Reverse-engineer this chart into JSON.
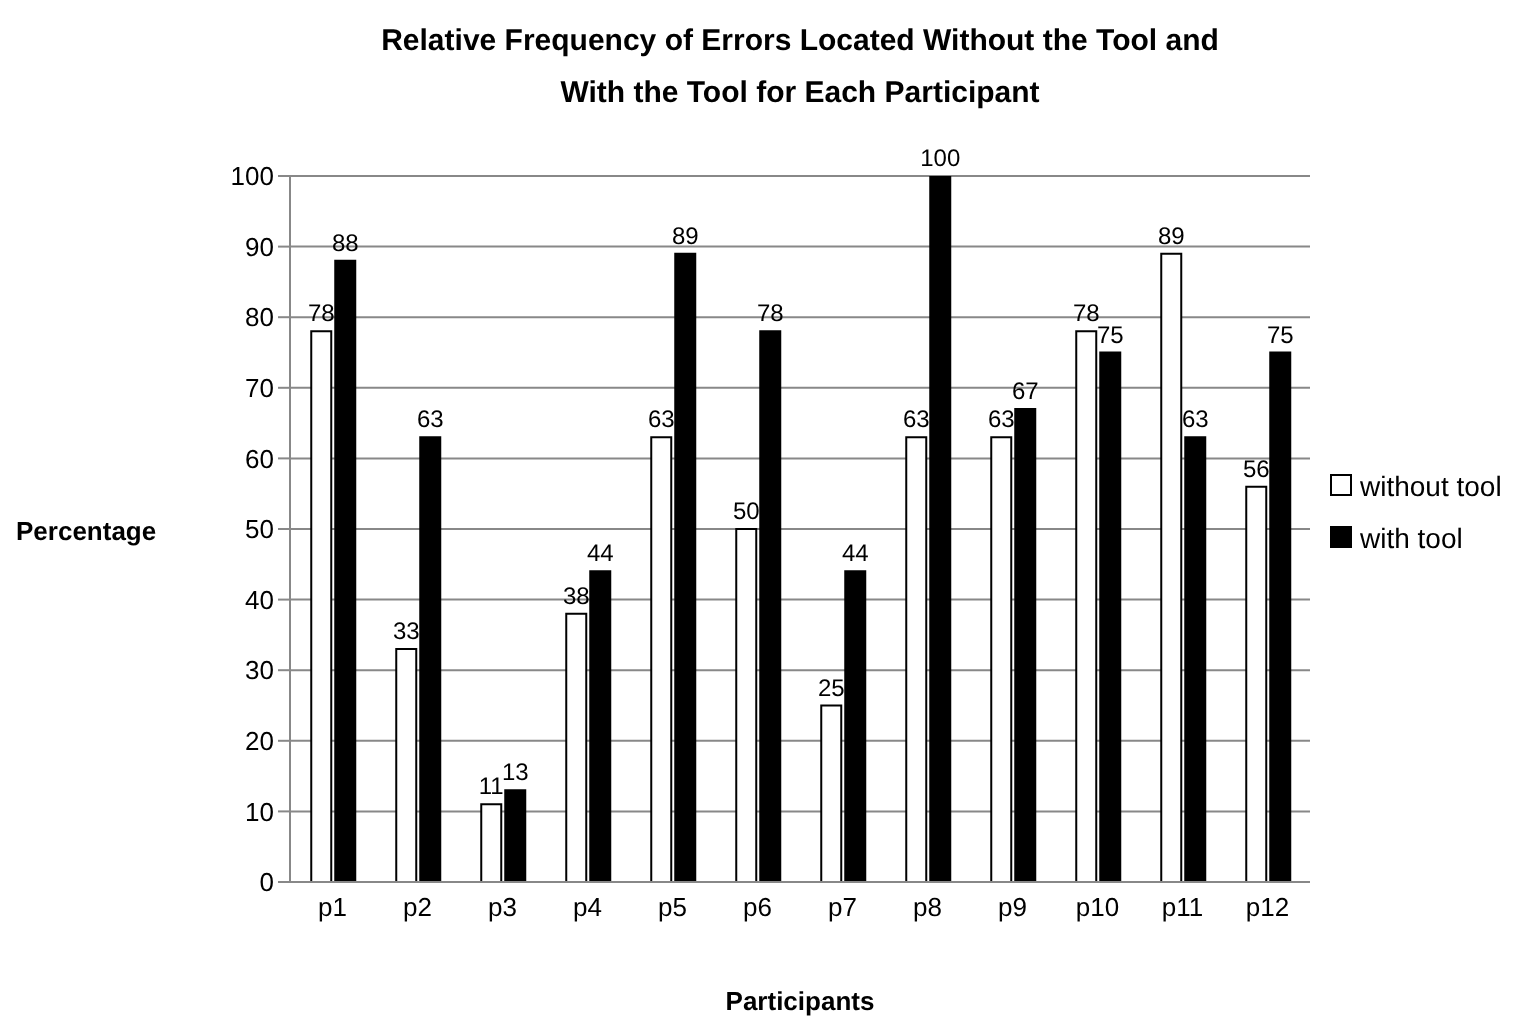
{
  "chart_data": {
    "type": "bar",
    "title": "Relative Frequency of Errors Located Without the Tool and With the Tool for Each Participant",
    "xlabel": "Participants",
    "ylabel": "Percentage",
    "categories": [
      "p1",
      "p2",
      "p3",
      "p4",
      "p5",
      "p6",
      "p7",
      "p8",
      "p9",
      "p10",
      "p11",
      "p12"
    ],
    "series": [
      {
        "name": "without tool",
        "color": "#ffffff",
        "values": [
          78,
          33,
          11,
          38,
          63,
          50,
          25,
          63,
          63,
          78,
          89,
          56
        ]
      },
      {
        "name": "with tool",
        "color": "#000000",
        "values": [
          88,
          63,
          13,
          44,
          89,
          78,
          44,
          100,
          67,
          75,
          63,
          75
        ]
      }
    ],
    "ylim": [
      0,
      100
    ],
    "yticks": [
      0,
      10,
      20,
      30,
      40,
      50,
      60,
      70,
      80,
      90,
      100
    ],
    "grid": "y",
    "legend": "right",
    "data_labels": true
  }
}
